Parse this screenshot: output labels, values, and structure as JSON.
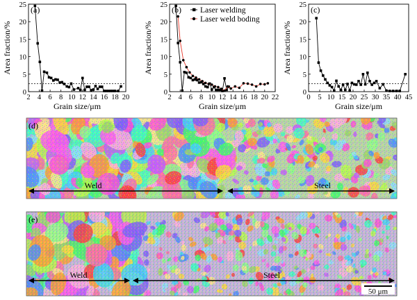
{
  "chart_data": [
    {
      "type": "line",
      "panel_label": "(a)",
      "xlabel": "Grain size/μm",
      "ylabel": "Area fraction/%",
      "xlim": [
        2,
        20
      ],
      "ylim": [
        0,
        25
      ],
      "xticks": [
        2,
        4,
        6,
        8,
        10,
        12,
        14,
        16,
        18,
        20
      ],
      "yticks": [
        0,
        5,
        10,
        15,
        20,
        25
      ],
      "reference_line": 2.3,
      "series": [
        {
          "x": [
            3.2,
            3.7,
            4.1,
            4.5,
            4.9,
            5.4,
            5.8,
            6.2,
            6.6,
            7.0,
            7.4,
            7.8,
            8.2,
            8.6,
            9.1,
            9.5,
            9.9,
            10.4,
            11.2,
            11.6,
            12.0,
            12.4,
            12.8,
            13.2,
            13.6,
            14.0,
            14.4,
            14.8,
            15.2,
            15.6,
            16.0,
            16.4,
            16.8,
            17.2,
            17.6,
            18.0,
            18.6,
            19.1
          ],
          "y": [
            24.5,
            13.8,
            8.5,
            0.3,
            5.7,
            5.4,
            4.1,
            3.9,
            3.2,
            3.5,
            3.4,
            2.6,
            2.7,
            2.2,
            1.5,
            1.3,
            2.3,
            0.6,
            1.0,
            0.5,
            3.9,
            0.5,
            1.4,
            1.4,
            0.4,
            0.6,
            1.6,
            0.8,
            1.4,
            1.4,
            0.2,
            0.2,
            0.2,
            0.2,
            0.2,
            0.2,
            0.2,
            1.5
          ]
        }
      ]
    },
    {
      "type": "line",
      "panel_label": "(b)",
      "xlabel": "Grain size/μm",
      "ylabel": "Area fraction/%",
      "xlim": [
        2,
        22
      ],
      "ylim": [
        0,
        25
      ],
      "xticks": [
        2,
        4,
        6,
        8,
        10,
        12,
        14,
        16,
        18,
        20,
        22
      ],
      "yticks": [
        0,
        5,
        10,
        15,
        20,
        25
      ],
      "legend_position": "top-right",
      "series": [
        {
          "name": "Laser welding",
          "color": "#000000",
          "marker": "square",
          "x": [
            3.2,
            3.6,
            4.0,
            4.4,
            4.8,
            5.2,
            5.6,
            6.0,
            6.4,
            6.8,
            7.2,
            7.6,
            8.0,
            8.4,
            8.8,
            9.2,
            9.6,
            10.0,
            10.4,
            10.8,
            11.2,
            11.6,
            12.0,
            12.4,
            12.8,
            13.2
          ],
          "y": [
            24.5,
            13.9,
            8.4,
            0.3,
            5.6,
            5.4,
            4.1,
            3.9,
            3.3,
            3.5,
            3.3,
            2.6,
            2.7,
            2.2,
            1.5,
            1.3,
            2.3,
            0.6,
            1.3,
            0.5,
            0.5,
            0.5,
            0.2,
            3.8,
            0.5,
            1.4
          ]
        },
        {
          "name": "Laser weld boding",
          "color": "#e8382a",
          "marker": "circle",
          "x": [
            3.6,
            4.0,
            4.6,
            5.2,
            5.8,
            6.4,
            7.0,
            7.6,
            8.2,
            8.8,
            9.4,
            10.0,
            10.6,
            11.2,
            11.8,
            12.4,
            13.0,
            13.6,
            14.4,
            15.2,
            16.0,
            16.8,
            17.6,
            18.4,
            19.2,
            20.0,
            20.6
          ],
          "y": [
            21.5,
            14.5,
            9.0,
            7.0,
            5.5,
            4.5,
            4.0,
            3.5,
            3.0,
            2.5,
            2.2,
            2.0,
            1.5,
            1.3,
            0.8,
            0.3,
            1.5,
            0.9,
            1.5,
            1.1,
            2.4,
            2.3,
            2.0,
            1.5,
            2.2,
            2.1,
            2.4
          ]
        }
      ]
    },
    {
      "type": "line",
      "panel_label": "(c)",
      "xlabel": "Grain size/μm",
      "ylabel": "Area fraction/%",
      "xlim": [
        0,
        45
      ],
      "ylim": [
        0,
        25
      ],
      "xticks": [
        0,
        5,
        10,
        15,
        20,
        25,
        30,
        35,
        40,
        45
      ],
      "yticks": [
        0,
        5,
        10,
        15,
        20,
        25
      ],
      "reference_line": 2.3,
      "series": [
        {
          "x": [
            3.5,
            4.5,
            5.5,
            6.5,
            7.5,
            8.5,
            9.5,
            10.5,
            11.5,
            12.5,
            13.5,
            14.5,
            15.5,
            16.5,
            17.5,
            18.5,
            19.5,
            20.5,
            21.5,
            22.5,
            23.5,
            24.5,
            25.5,
            26.5,
            27.5,
            28.5,
            29.5,
            30.5,
            32.0,
            33.5,
            35.0,
            36.5,
            38.0,
            39.5,
            41.0,
            43.5
          ],
          "y": [
            21.0,
            8.3,
            6.0,
            4.6,
            3.5,
            2.5,
            1.8,
            1.3,
            0.3,
            3.1,
            1.5,
            0.5,
            2.0,
            0.5,
            2.2,
            0.3,
            2.5,
            2.1,
            2.0,
            3.0,
            2.0,
            5.0,
            2.1,
            5.4,
            3.0,
            2.0,
            2.5,
            3.0,
            1.0,
            2.1,
            0.3,
            0.2,
            0.2,
            0.2,
            0.2,
            5.0
          ]
        }
      ]
    }
  ],
  "maps": {
    "d": {
      "label": "(d)",
      "left_region": "Weld",
      "right_region": "Steel"
    },
    "e": {
      "label": "(e)",
      "left_region": "Weld",
      "right_region": "Steel",
      "scale_bar": "50 μm"
    }
  }
}
